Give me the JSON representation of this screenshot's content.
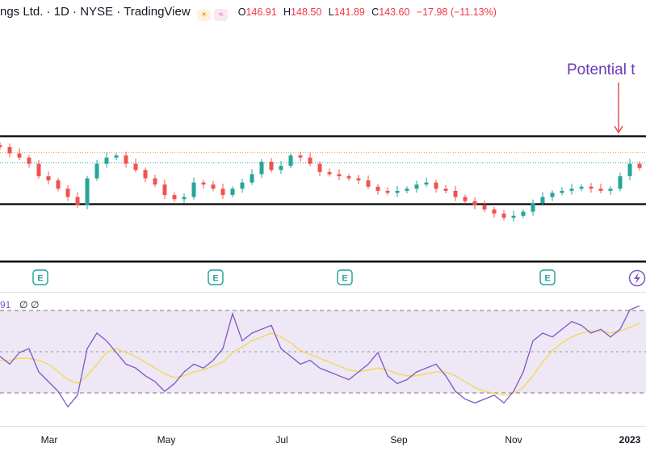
{
  "header": {
    "title": "ngs Ltd. · 1D · NYSE · TradingView",
    "o_label": "O",
    "o_value": "146.91",
    "h_label": "H",
    "h_value": "148.50",
    "l_label": "L",
    "l_value": "141.89",
    "c_label": "C",
    "c_value": "143.60",
    "change": "−17.98 (−11.13%)"
  },
  "annotation": {
    "text": "Potential t"
  },
  "rsi_legend": {
    "value": "91",
    "z1": "∅",
    "z2": "∅"
  },
  "icons": {
    "sun": "sun-icon",
    "wave": "wave-icon",
    "earnings": "earnings-icon",
    "flash": "lightning-icon"
  },
  "colors": {
    "up": "#26a69a",
    "down": "#ef5350",
    "rsi": "#7e57c2",
    "rsi_ma": "#f5d84a",
    "annotation": "#673ab7",
    "arrow": "#e53935",
    "band": "#ede7f6",
    "support": "#000000"
  },
  "chart_data": [
    {
      "type": "candlestick",
      "title": "",
      "levels": {
        "resistance": 148.5,
        "support": 131.0,
        "bottom": 116.5,
        "last_close_line": 141.8,
        "dotted_line": 144.5
      },
      "ylim": [
        112,
        182
      ],
      "x_labels": [
        "Mar",
        "May",
        "Jul",
        "Sep",
        "Nov",
        "2023"
      ],
      "earnings_markers": [
        "E",
        "E",
        "E",
        "E"
      ],
      "approx_closes": [
        154,
        151,
        149,
        146,
        140,
        138,
        134,
        130,
        126,
        139,
        146,
        149,
        150,
        146,
        143,
        139,
        136,
        131,
        129,
        130,
        137,
        136,
        134,
        131,
        134,
        137,
        141,
        147,
        143,
        145,
        150,
        149,
        146,
        142,
        141,
        140,
        139,
        138,
        135,
        133,
        132,
        133,
        134,
        136,
        137,
        134,
        133,
        130,
        128,
        126,
        124,
        122,
        120,
        121,
        123,
        127,
        130,
        132,
        133,
        134,
        135,
        134,
        133,
        134,
        140,
        146,
        144
      ]
    },
    {
      "type": "line",
      "title": "",
      "series": [
        {
          "values": [
            48,
            44,
            50,
            52,
            40,
            35,
            30,
            22,
            28,
            52,
            60,
            56,
            50,
            44,
            42,
            38,
            35,
            30,
            34,
            40,
            44,
            42,
            46,
            52,
            70,
            56,
            60,
            62,
            64,
            52,
            48,
            44,
            46,
            42,
            40,
            38,
            36,
            40,
            44,
            50,
            38,
            34,
            36,
            40,
            42,
            44,
            38,
            30,
            26,
            24,
            26,
            28,
            24,
            30,
            40,
            56,
            60,
            58,
            62,
            66,
            64,
            60,
            62,
            58,
            62,
            72,
            74
          ]
        },
        {
          "values": [
            46,
            46,
            47,
            47,
            46,
            44,
            40,
            36,
            34,
            38,
            44,
            50,
            52,
            50,
            48,
            45,
            42,
            39,
            37,
            38,
            40,
            41,
            43,
            45,
            50,
            53,
            56,
            58,
            60,
            58,
            55,
            51,
            49,
            47,
            45,
            43,
            41,
            40,
            41,
            42,
            41,
            39,
            38,
            38,
            39,
            40,
            40,
            38,
            35,
            32,
            30,
            29,
            28,
            29,
            32,
            38,
            45,
            51,
            55,
            58,
            60,
            61,
            61,
            60,
            61,
            63,
            65
          ]
        }
      ],
      "ylim": [
        15,
        80
      ]
    }
  ]
}
